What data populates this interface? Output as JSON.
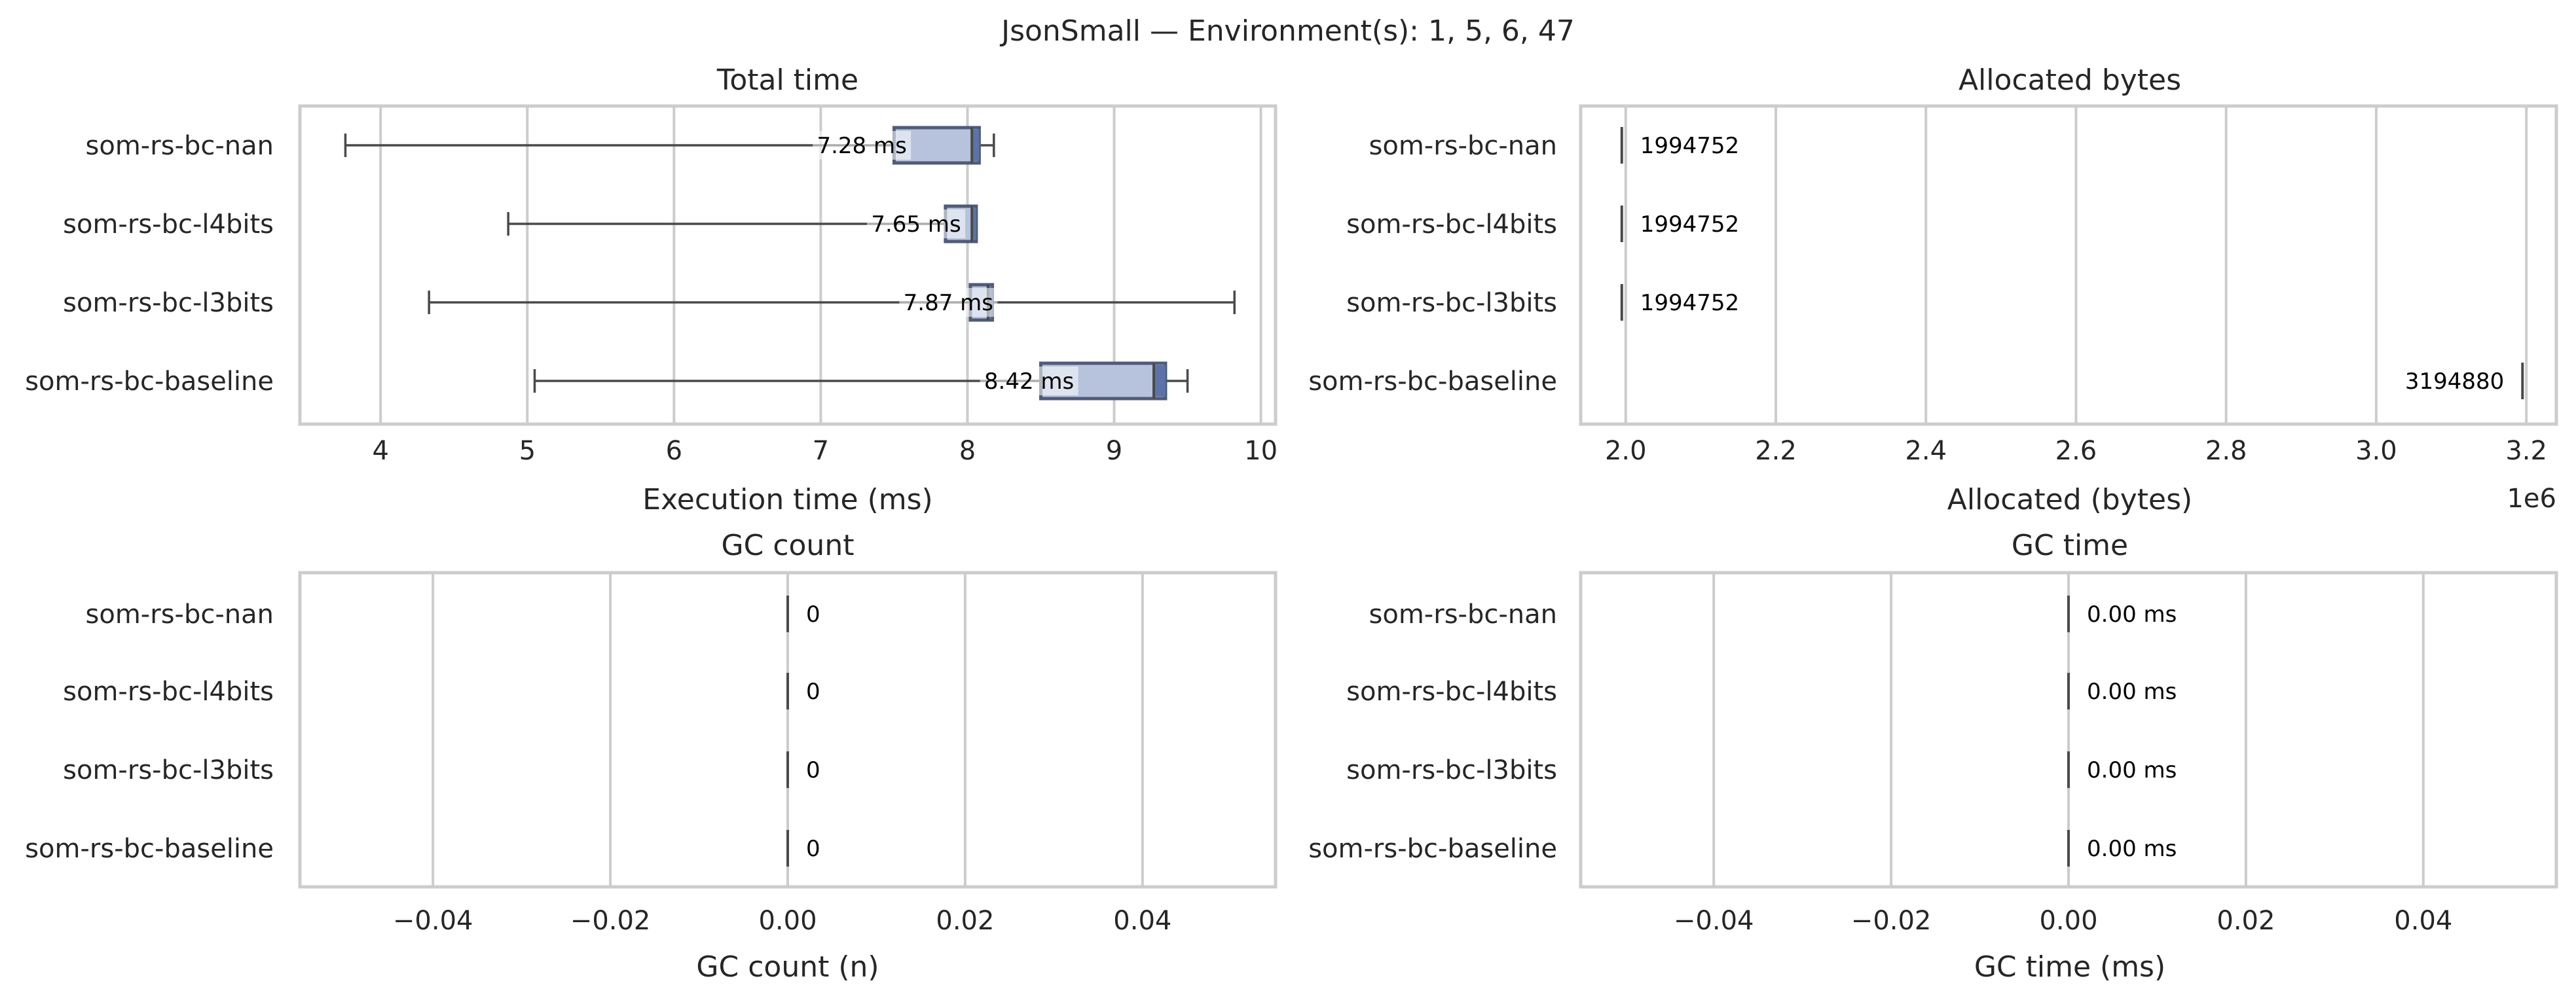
{
  "title": "JsonSmall — Environment(s): 1, 5, 6, 47",
  "colors": {
    "box_face": "#b7c3dc",
    "box_edge": "#4f5b78",
    "box_dark": "#5b73a8",
    "whisker": "#4a4a4a",
    "grid": "#cccccc"
  },
  "categories": [
    "som-rs-bc-nan",
    "som-rs-bc-l4bits",
    "som-rs-bc-l3bits",
    "som-rs-bc-baseline"
  ],
  "chart_data": [
    {
      "id": "total_time",
      "type": "box",
      "title": "Total time",
      "xlabel": "Execution time (ms)",
      "xlim": [
        3.45,
        10.1
      ],
      "xticks": [
        4,
        5,
        6,
        7,
        8,
        9,
        10
      ],
      "tick_labels": [
        "4",
        "5",
        "6",
        "7",
        "8",
        "9",
        "10"
      ],
      "offset_label": "",
      "grid": true,
      "series": [
        {
          "category": "som-rs-bc-nan",
          "whislo": 3.76,
          "q1": 7.5,
          "median": 8.03,
          "q3": 8.08,
          "whishi": 8.18,
          "label": "7.28 ms"
        },
        {
          "category": "som-rs-bc-l4bits",
          "whislo": 4.87,
          "q1": 7.85,
          "median": 8.03,
          "q3": 8.06,
          "whislo_note": "",
          "whishi": 8.06,
          "label": "7.65 ms"
        },
        {
          "category": "som-rs-bc-l3bits",
          "whislo": 4.33,
          "q1": 8.02,
          "median": 8.14,
          "q3": 8.17,
          "whishi": 9.82,
          "label": "7.87 ms"
        },
        {
          "category": "som-rs-bc-baseline",
          "whislo": 5.05,
          "q1": 8.5,
          "median": 9.27,
          "q3": 9.35,
          "whishi": 9.5,
          "label": "8.42 ms"
        }
      ]
    },
    {
      "id": "allocated_bytes",
      "type": "box",
      "title": "Allocated bytes",
      "xlabel": "Allocated (bytes)",
      "xlim": [
        1.94,
        3.24
      ],
      "xticks": [
        2.0,
        2.2,
        2.4,
        2.6,
        2.8,
        3.0,
        3.2
      ],
      "tick_labels": [
        "2.0",
        "2.2",
        "2.4",
        "2.6",
        "2.8",
        "3.0",
        "3.2"
      ],
      "offset_label": "1e6",
      "grid": true,
      "series": [
        {
          "category": "som-rs-bc-nan",
          "value": 1.994752,
          "label": "1994752"
        },
        {
          "category": "som-rs-bc-l4bits",
          "value": 1.994752,
          "label": "1994752"
        },
        {
          "category": "som-rs-bc-l3bits",
          "value": 1.994752,
          "label": "1994752"
        },
        {
          "category": "som-rs-bc-baseline",
          "value": 3.19488,
          "label": "3194880"
        }
      ]
    },
    {
      "id": "gc_count",
      "type": "box",
      "title": "GC count",
      "xlabel": "GC count (n)",
      "xlim": [
        -0.055,
        0.055
      ],
      "xticks": [
        -0.04,
        -0.02,
        0.0,
        0.02,
        0.04
      ],
      "tick_labels": [
        "−0.04",
        "−0.02",
        "0.00",
        "0.02",
        "0.04"
      ],
      "offset_label": "",
      "grid": true,
      "series": [
        {
          "category": "som-rs-bc-nan",
          "value": 0,
          "label": "0"
        },
        {
          "category": "som-rs-bc-l4bits",
          "value": 0,
          "label": "0"
        },
        {
          "category": "som-rs-bc-l3bits",
          "value": 0,
          "label": "0"
        },
        {
          "category": "som-rs-bc-baseline",
          "value": 0,
          "label": "0"
        }
      ]
    },
    {
      "id": "gc_time",
      "type": "box",
      "title": "GC time",
      "xlabel": "GC time (ms)",
      "xlim": [
        -0.055,
        0.055
      ],
      "xticks": [
        -0.04,
        -0.02,
        0.0,
        0.02,
        0.04
      ],
      "tick_labels": [
        "−0.04",
        "−0.02",
        "0.00",
        "0.02",
        "0.04"
      ],
      "offset_label": "",
      "grid": true,
      "series": [
        {
          "category": "som-rs-bc-nan",
          "value": 0,
          "label": "0.00 ms"
        },
        {
          "category": "som-rs-bc-l4bits",
          "value": 0,
          "label": "0.00 ms"
        },
        {
          "category": "som-rs-bc-l3bits",
          "value": 0,
          "label": "0.00 ms"
        },
        {
          "category": "som-rs-bc-baseline",
          "value": 0,
          "label": "0.00 ms"
        }
      ]
    }
  ]
}
